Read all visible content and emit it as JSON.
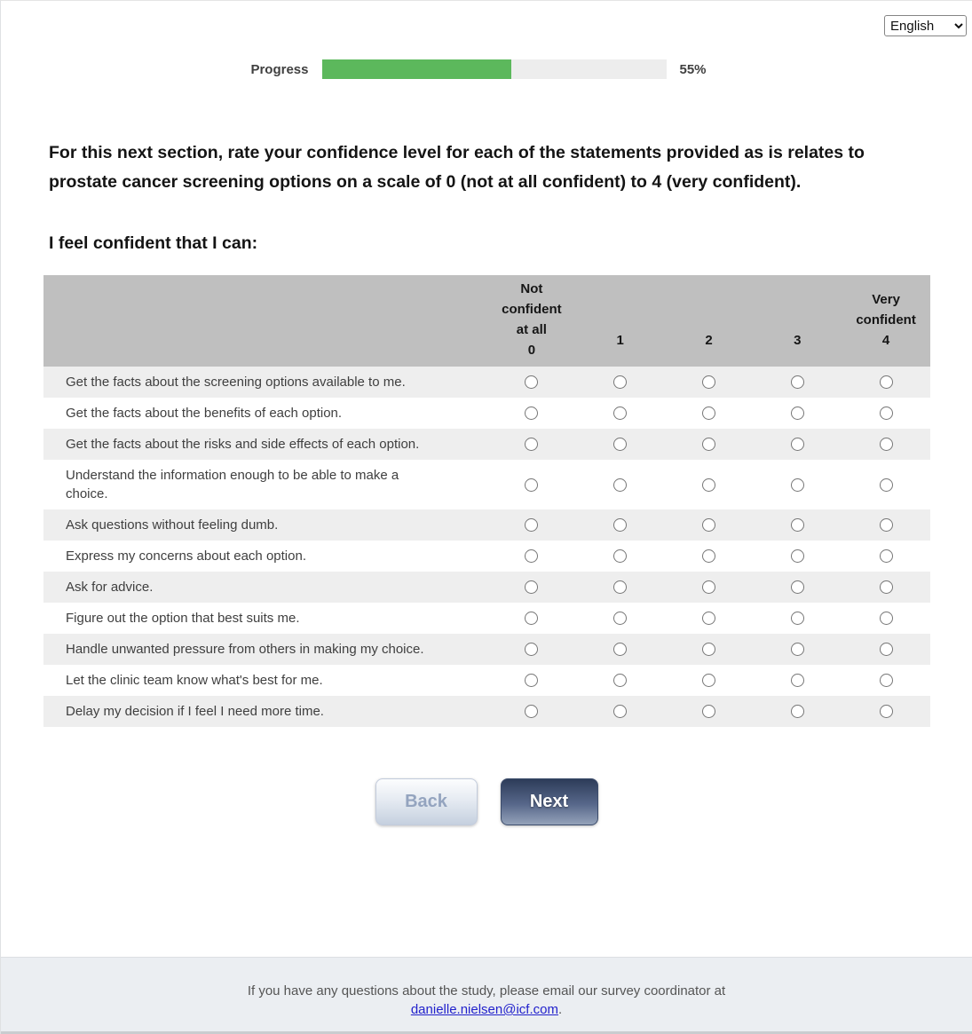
{
  "language_selector": {
    "selected": "English",
    "options": [
      "English"
    ]
  },
  "progress": {
    "label": "Progress",
    "percent": 55,
    "percent_text": "55%",
    "fill_color": "#5cb85c",
    "track_color": "#ededed"
  },
  "instructions": "For this next section, rate your confidence level for each of the statements provided as is relates to prostate cancer screening options on a scale of 0 (not at all confident) to 4 (very confident).",
  "question_lead": "I feel confident that I can:",
  "matrix": {
    "header_bg_color": "#bfbfbf",
    "alt_row_color": "#eeeeee",
    "columns": [
      {
        "value": 0,
        "label_lines": [
          "Not",
          "confident",
          "at all",
          "0"
        ]
      },
      {
        "value": 1,
        "label_lines": [
          "1"
        ]
      },
      {
        "value": 2,
        "label_lines": [
          "2"
        ]
      },
      {
        "value": 3,
        "label_lines": [
          "3"
        ]
      },
      {
        "value": 4,
        "label_lines": [
          "Very",
          "confident",
          "4"
        ]
      }
    ],
    "rows": [
      "Get the facts about the screening options available to me.",
      "Get the facts about the benefits of each option.",
      "Get the facts about the risks and side effects of each option.",
      "Understand the information enough to be able to make a choice.",
      "Ask questions without feeling dumb.",
      "Express my concerns about each option.",
      "Ask for advice.",
      "Figure out the option that best suits me.",
      "Handle unwanted pressure from others in making my choice.",
      "Let the clinic team know what's best for me.",
      "Delay my decision if I feel I need more time."
    ]
  },
  "buttons": {
    "back": "Back",
    "next": "Next",
    "next_color": "#2d3c59"
  },
  "footer": {
    "text": "If you have any questions about the study, please email our survey coordinator at",
    "email": "danielle.nielsen@icf.com",
    "suffix": "."
  }
}
